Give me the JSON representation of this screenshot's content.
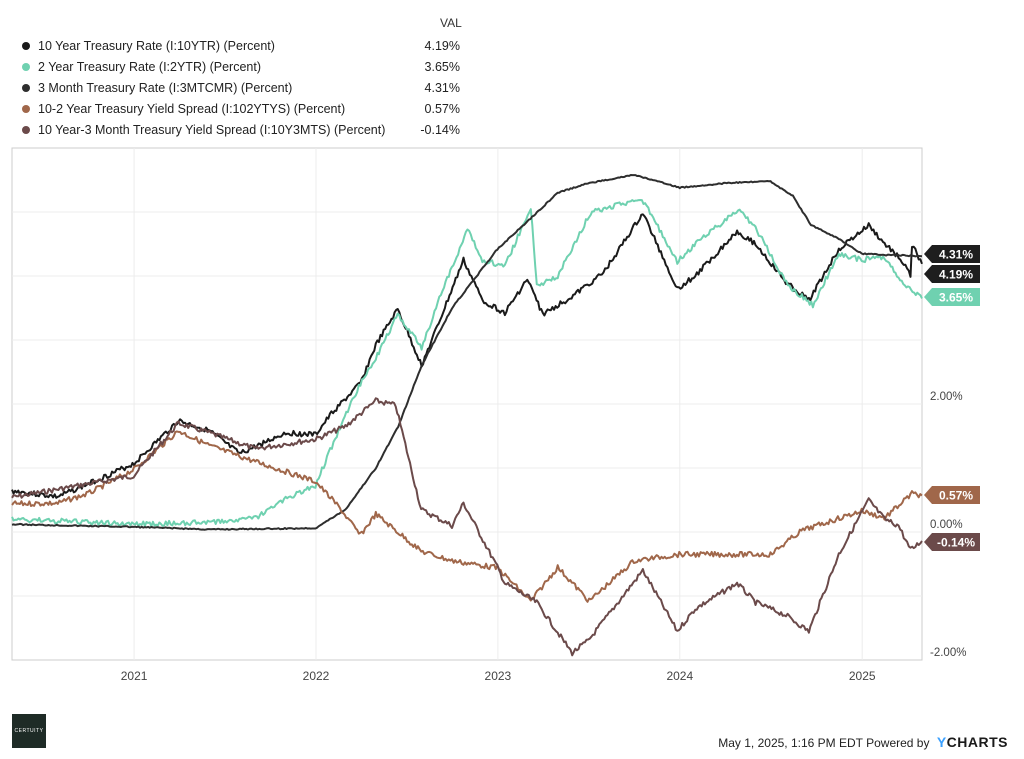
{
  "legend_header": "VAL",
  "footer": {
    "timestamp": "May 1, 2025, 1:16 PM EDT Powered by",
    "brand_y": "Y",
    "brand_rest": "CHARTS",
    "logo_text": "CERTUITY"
  },
  "chart_data": {
    "type": "line",
    "x_tick_labels": [
      "2021",
      "2022",
      "2023",
      "2024",
      "2025"
    ],
    "y_tick_labels": [
      "2.00%",
      "0.00%",
      "-2.00%"
    ],
    "ylim": [
      -2.0,
      6.0
    ],
    "xlim": [
      "2020-05-01",
      "2025-05-01"
    ],
    "grid": true,
    "legend_placement": "top-left",
    "series": [
      {
        "name": "10 Year Treasury Rate (I:10YTR) (Percent)",
        "color": "#1a1a1a",
        "last_value": "4.19%",
        "end_label": "4.19%",
        "points": [
          [
            "2020-05-01",
            0.64
          ],
          [
            "2020-08-01",
            0.55
          ],
          [
            "2020-10-01",
            0.75
          ],
          [
            "2021-01-01",
            1.07
          ],
          [
            "2021-03-31",
            1.74
          ],
          [
            "2021-06-01",
            1.58
          ],
          [
            "2021-08-01",
            1.22
          ],
          [
            "2021-11-01",
            1.55
          ],
          [
            "2021-12-31",
            1.52
          ],
          [
            "2022-02-01",
            1.85
          ],
          [
            "2022-03-31",
            2.32
          ],
          [
            "2022-05-01",
            2.92
          ],
          [
            "2022-06-14",
            3.48
          ],
          [
            "2022-08-01",
            2.6
          ],
          [
            "2022-09-01",
            3.2
          ],
          [
            "2022-10-24",
            4.25
          ],
          [
            "2022-12-01",
            3.62
          ],
          [
            "2023-01-15",
            3.42
          ],
          [
            "2023-03-01",
            3.95
          ],
          [
            "2023-04-01",
            3.4
          ],
          [
            "2023-06-01",
            3.69
          ],
          [
            "2023-08-01",
            4.05
          ],
          [
            "2023-10-19",
            4.98
          ],
          [
            "2023-12-27",
            3.8
          ],
          [
            "2024-02-01",
            4.0
          ],
          [
            "2024-04-25",
            4.7
          ],
          [
            "2024-06-01",
            4.5
          ],
          [
            "2024-08-01",
            3.9
          ],
          [
            "2024-09-16",
            3.62
          ],
          [
            "2024-11-15",
            4.42
          ],
          [
            "2025-01-14",
            4.79
          ],
          [
            "2025-02-15",
            4.5
          ],
          [
            "2025-03-15",
            4.3
          ],
          [
            "2025-04-08",
            4.01
          ],
          [
            "2025-04-11",
            4.49
          ],
          [
            "2025-05-01",
            4.19
          ]
        ]
      },
      {
        "name": "2 Year Treasury Rate (I:2YTR) (Percent)",
        "color": "#6fd1b0",
        "last_value": "3.65%",
        "end_label": "3.65%",
        "points": [
          [
            "2020-05-01",
            0.2
          ],
          [
            "2020-12-31",
            0.12
          ],
          [
            "2021-06-01",
            0.15
          ],
          [
            "2021-09-01",
            0.22
          ],
          [
            "2021-11-01",
            0.52
          ],
          [
            "2021-12-31",
            0.73
          ],
          [
            "2022-02-15",
            1.58
          ],
          [
            "2022-03-31",
            2.32
          ],
          [
            "2022-05-01",
            2.72
          ],
          [
            "2022-06-14",
            3.4
          ],
          [
            "2022-08-01",
            2.88
          ],
          [
            "2022-09-15",
            3.85
          ],
          [
            "2022-11-01",
            4.72
          ],
          [
            "2022-12-01",
            4.25
          ],
          [
            "2023-01-15",
            4.15
          ],
          [
            "2023-03-08",
            5.07
          ],
          [
            "2023-03-20",
            3.85
          ],
          [
            "2023-05-01",
            4.0
          ],
          [
            "2023-07-06",
            4.99
          ],
          [
            "2023-10-17",
            5.21
          ],
          [
            "2023-12-27",
            4.23
          ],
          [
            "2024-02-15",
            4.6
          ],
          [
            "2024-04-30",
            5.04
          ],
          [
            "2024-06-01",
            4.75
          ],
          [
            "2024-08-05",
            3.85
          ],
          [
            "2024-09-24",
            3.55
          ],
          [
            "2024-11-15",
            4.35
          ],
          [
            "2024-12-31",
            4.25
          ],
          [
            "2025-02-15",
            4.3
          ],
          [
            "2025-03-15",
            3.95
          ],
          [
            "2025-05-01",
            3.65
          ]
        ]
      },
      {
        "name": "3 Month Treasury Rate (I:3MTCMR) (Percent)",
        "color": "#2e2e2e",
        "last_value": "4.31%",
        "end_label": "4.31%",
        "points": [
          [
            "2020-05-01",
            0.12
          ],
          [
            "2020-12-31",
            0.08
          ],
          [
            "2021-06-01",
            0.04
          ],
          [
            "2021-12-31",
            0.06
          ],
          [
            "2022-03-01",
            0.35
          ],
          [
            "2022-05-01",
            1.0
          ],
          [
            "2022-06-15",
            1.65
          ],
          [
            "2022-08-01",
            2.6
          ],
          [
            "2022-10-01",
            3.5
          ],
          [
            "2022-12-31",
            4.42
          ],
          [
            "2023-03-01",
            4.85
          ],
          [
            "2023-05-01",
            5.3
          ],
          [
            "2023-07-01",
            5.45
          ],
          [
            "2023-10-01",
            5.58
          ],
          [
            "2024-01-01",
            5.38
          ],
          [
            "2024-04-01",
            5.45
          ],
          [
            "2024-07-01",
            5.48
          ],
          [
            "2024-08-15",
            5.25
          ],
          [
            "2024-09-20",
            4.8
          ],
          [
            "2024-11-15",
            4.58
          ],
          [
            "2024-12-31",
            4.35
          ],
          [
            "2025-02-15",
            4.33
          ],
          [
            "2025-05-01",
            4.31
          ]
        ]
      },
      {
        "name": "10-2 Year Treasury Yield Spread (I:102YTYS) (Percent)",
        "color": "#a0674a",
        "last_value": "0.57%",
        "end_label": "0.57%",
        "points": [
          [
            "2020-05-01",
            0.44
          ],
          [
            "2020-08-01",
            0.45
          ],
          [
            "2020-10-01",
            0.6
          ],
          [
            "2021-01-01",
            0.98
          ],
          [
            "2021-03-31",
            1.58
          ],
          [
            "2021-06-01",
            1.35
          ],
          [
            "2021-09-01",
            1.1
          ],
          [
            "2021-12-31",
            0.79
          ],
          [
            "2022-02-15",
            0.4
          ],
          [
            "2022-03-31",
            -0.05
          ],
          [
            "2022-05-01",
            0.28
          ],
          [
            "2022-06-14",
            0.0
          ],
          [
            "2022-07-31",
            -0.3
          ],
          [
            "2022-10-01",
            -0.45
          ],
          [
            "2022-12-31",
            -0.56
          ],
          [
            "2023-03-08",
            -1.08
          ],
          [
            "2023-05-01",
            -0.55
          ],
          [
            "2023-07-03",
            -1.08
          ],
          [
            "2023-10-01",
            -0.45
          ],
          [
            "2023-12-31",
            -0.35
          ],
          [
            "2024-02-15",
            -0.35
          ],
          [
            "2024-05-01",
            -0.35
          ],
          [
            "2024-07-01",
            -0.35
          ],
          [
            "2024-09-01",
            0.02
          ],
          [
            "2024-12-31",
            0.33
          ],
          [
            "2025-02-15",
            0.22
          ],
          [
            "2025-04-11",
            0.6
          ],
          [
            "2025-05-01",
            0.57
          ]
        ]
      },
      {
        "name": "10 Year-3 Month Treasury Yield Spread (I:10Y3MTS) (Percent)",
        "color": "#6b4a4a",
        "last_value": "-0.14%",
        "end_label": "-0.14%",
        "points": [
          [
            "2020-05-01",
            0.54
          ],
          [
            "2020-12-31",
            0.88
          ],
          [
            "2021-03-31",
            1.7
          ],
          [
            "2021-06-01",
            1.55
          ],
          [
            "2021-09-01",
            1.3
          ],
          [
            "2021-12-31",
            1.45
          ],
          [
            "2022-03-01",
            1.65
          ],
          [
            "2022-05-01",
            2.05
          ],
          [
            "2022-06-10",
            1.98
          ],
          [
            "2022-07-31",
            0.35
          ],
          [
            "2022-10-01",
            0.1
          ],
          [
            "2022-10-24",
            0.45
          ],
          [
            "2022-12-31",
            -0.55
          ],
          [
            "2023-01-15",
            -0.8
          ],
          [
            "2023-03-20",
            -1.1
          ],
          [
            "2023-05-30",
            -1.89
          ],
          [
            "2023-07-01",
            -1.7
          ],
          [
            "2023-10-19",
            -0.6
          ],
          [
            "2023-12-27",
            -1.55
          ],
          [
            "2024-02-01",
            -1.2
          ],
          [
            "2024-04-25",
            -0.8
          ],
          [
            "2024-06-01",
            -1.1
          ],
          [
            "2024-08-01",
            -1.3
          ],
          [
            "2024-09-16",
            -1.55
          ],
          [
            "2024-11-15",
            -0.35
          ],
          [
            "2025-01-14",
            0.5
          ],
          [
            "2025-02-15",
            0.2
          ],
          [
            "2025-03-15",
            0.1
          ],
          [
            "2025-04-08",
            -0.28
          ],
          [
            "2025-05-01",
            -0.14
          ]
        ]
      }
    ]
  }
}
